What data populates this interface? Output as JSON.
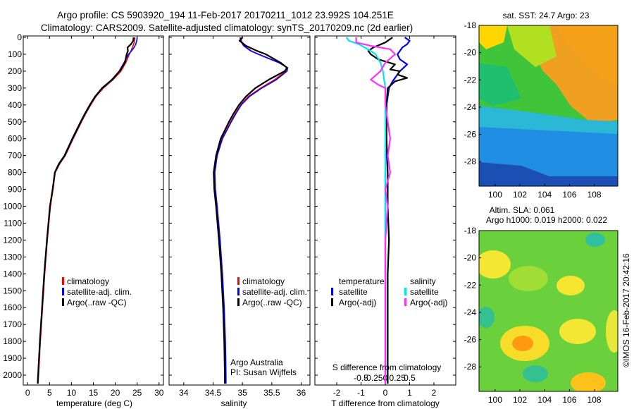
{
  "title": {
    "line1": "Argo profile: CS 5903920_194 11-Feb-2017 20170211_1012 23.992S 104.251E",
    "line2": "Climatology: CARS2009. Satellite-adjusted climatology: synTS_20170209.nc (2d earlier)"
  },
  "colors": {
    "climatology": "#ff0000",
    "satellite": "#0000ff",
    "argo": "#000000",
    "sal_satellite": "#00e5ee",
    "sal_argo": "#ff30ff"
  },
  "chart_data": [
    {
      "type": "line",
      "id": "temperature",
      "xlabel": "temperature (deg C)",
      "ylabel": "",
      "xlim": [
        -1,
        31
      ],
      "ylim": [
        0,
        2050
      ],
      "y_reversed": true,
      "xticks": [
        "0",
        "5",
        "10",
        "15",
        "20",
        "25",
        "30"
      ],
      "yticks": [
        "0",
        "100",
        "200",
        "300",
        "400",
        "500",
        "600",
        "700",
        "800",
        "900",
        "1000",
        "1100",
        "1200",
        "1300",
        "1400",
        "1500",
        "1600",
        "1700",
        "1800",
        "1900",
        "2000"
      ],
      "legend": [
        "climatology",
        "satellite-adj. clim.",
        "Argo(..raw -QC)"
      ],
      "series": [
        {
          "name": "climatology",
          "depth": [
            0,
            20,
            40,
            60,
            80,
            100,
            150,
            200,
            250,
            300,
            350,
            400,
            450,
            500,
            600,
            700,
            750,
            800,
            900,
            1000,
            1200,
            1400,
            1600,
            1800,
            2000,
            2050
          ],
          "values": [
            24.5,
            24.4,
            24.2,
            23.9,
            23.6,
            23.2,
            22.4,
            21.3,
            19.5,
            17.3,
            15.6,
            14.4,
            13.3,
            12.3,
            10.4,
            8.6,
            7.3,
            6.3,
            5.8,
            5.2,
            4.5,
            3.9,
            3.4,
            2.9,
            2.5,
            2.4
          ]
        },
        {
          "name": "satellite-adj. clim.",
          "depth": [
            0,
            20,
            40,
            60,
            80,
            100,
            150,
            200,
            250,
            300,
            350,
            400,
            450,
            500,
            600,
            700,
            750,
            800,
            900,
            1000,
            1200,
            1400,
            1600,
            1800,
            2000,
            2050
          ],
          "values": [
            25.0,
            24.9,
            24.7,
            24.3,
            23.7,
            23.0,
            22.0,
            20.9,
            19.2,
            17.1,
            15.5,
            14.3,
            13.2,
            12.2,
            10.3,
            8.5,
            7.2,
            6.2,
            5.7,
            5.1,
            4.4,
            3.8,
            3.3,
            2.8,
            2.4,
            2.3
          ]
        },
        {
          "name": "Argo(..raw -QC)",
          "depth": [
            0,
            20,
            40,
            60,
            80,
            100,
            150,
            200,
            250,
            300,
            350,
            400,
            450,
            500,
            600,
            700,
            750,
            800,
            900,
            1000,
            1200,
            1400,
            1600,
            1800,
            2000,
            2050
          ],
          "values": [
            24.2,
            24.1,
            23.6,
            22.8,
            22.9,
            22.6,
            22.2,
            21.0,
            19.3,
            17.0,
            15.4,
            14.2,
            13.1,
            12.1,
            10.2,
            8.4,
            7.1,
            6.2,
            5.7,
            5.1,
            4.4,
            3.8,
            3.3,
            2.8,
            2.4,
            2.3
          ]
        }
      ]
    },
    {
      "type": "line",
      "id": "salinity",
      "xlabel": "salinity",
      "xlim": [
        33.75,
        36.15
      ],
      "ylim": [
        0,
        2050
      ],
      "y_reversed": true,
      "xticks": [
        "34",
        "34.5",
        "35",
        "35.5",
        "36"
      ],
      "legend": [
        "climatology",
        "satellite-adj. clim.",
        "Argo(..raw -QC)"
      ],
      "annotation": [
        "Argo Australia",
        "PI: Susan Wijffels"
      ],
      "series": [
        {
          "name": "climatology",
          "depth": [
            0,
            20,
            50,
            80,
            100,
            150,
            180,
            200,
            250,
            300,
            350,
            400,
            450,
            500,
            600,
            700,
            800,
            900,
            1000,
            1200,
            1400,
            1600,
            1800,
            2000,
            2050
          ],
          "values": [
            34.98,
            34.98,
            35.03,
            35.15,
            35.28,
            35.63,
            35.76,
            35.74,
            35.55,
            35.31,
            35.1,
            34.97,
            34.88,
            34.8,
            34.65,
            34.56,
            34.52,
            34.53,
            34.56,
            34.61,
            34.65,
            34.68,
            34.7,
            34.71,
            34.71
          ]
        },
        {
          "name": "satellite-adj. clim.",
          "depth": [
            0,
            20,
            50,
            80,
            100,
            150,
            180,
            200,
            250,
            300,
            350,
            400,
            450,
            500,
            600,
            700,
            800,
            900,
            1000,
            1200,
            1400,
            1600,
            1800,
            2000,
            2050
          ],
          "values": [
            34.96,
            34.97,
            35.02,
            35.14,
            35.27,
            35.62,
            35.77,
            35.76,
            35.58,
            35.33,
            35.12,
            34.98,
            34.89,
            34.81,
            34.66,
            34.57,
            34.53,
            34.54,
            34.57,
            34.62,
            34.66,
            34.69,
            34.71,
            34.72,
            34.72
          ]
        },
        {
          "name": "Argo(..raw -QC)",
          "depth": [
            0,
            20,
            50,
            80,
            100,
            150,
            180,
            200,
            250,
            300,
            350,
            400,
            450,
            500,
            600,
            700,
            800,
            900,
            1000,
            1200,
            1400,
            1600,
            1800,
            2000,
            2050
          ],
          "values": [
            35.0,
            34.95,
            35.06,
            35.25,
            35.4,
            35.65,
            35.76,
            35.72,
            35.45,
            35.22,
            35.06,
            34.94,
            34.85,
            34.77,
            34.63,
            34.55,
            34.51,
            34.52,
            34.55,
            34.6,
            34.64,
            34.67,
            34.69,
            34.7,
            34.7
          ]
        }
      ]
    },
    {
      "type": "line",
      "id": "difference",
      "xlabel": "T difference from climatology",
      "xlabel_top": "S difference from climatology",
      "xlim": [
        -2.9,
        2.9
      ],
      "ylim": [
        0,
        2050
      ],
      "y_reversed": true,
      "xticks": [
        "-2",
        "-1",
        "0",
        "1",
        "2"
      ],
      "sticks": [
        "-0.5",
        "-0.25",
        "0",
        "0.25",
        "0.5"
      ],
      "legend_headers": [
        "temperature",
        "salinity"
      ],
      "legend": [
        "satellite",
        "Argo(-adj)",
        "satellite",
        "Argo(-adj)"
      ],
      "series": [
        {
          "name": "temperature satellite",
          "depth": [
            0,
            20,
            40,
            60,
            80,
            100,
            130,
            160,
            200,
            260,
            300,
            400,
            600,
            800,
            1000,
            1500,
            2050
          ],
          "values": [
            0.8,
            1.0,
            0.9,
            0.7,
            0.6,
            0.5,
            0.6,
            0.9,
            0.6,
            0.3,
            0.15,
            0.05,
            0.02,
            0.0,
            0.0,
            0.0,
            0.0
          ]
        },
        {
          "name": "temperature Argo(-adj)",
          "depth": [
            0,
            30,
            60,
            80,
            100,
            130,
            160,
            190,
            200,
            220,
            240,
            260,
            300,
            400,
            600,
            800,
            1000,
            1200,
            1400,
            1600,
            1800,
            2050
          ],
          "values": [
            0.3,
            0.0,
            -0.5,
            -0.7,
            -0.6,
            -0.3,
            0.4,
            0.2,
            0.6,
            0.5,
            0.9,
            0.4,
            0.1,
            0.05,
            0.05,
            0.1,
            0.1,
            0.15,
            0.1,
            0.1,
            0.1,
            0.1
          ]
        },
        {
          "name": "salinity satellite",
          "depth": [
            0,
            20,
            40,
            80,
            100,
            150,
            200,
            300,
            400,
            600,
            800,
            1000,
            1500,
            2050
          ],
          "values": [
            -0.8,
            -0.75,
            -0.55,
            -0.3,
            -0.2,
            -0.1,
            -0.05,
            0.0,
            0.0,
            0.0,
            0.0,
            0.0,
            0.0,
            0.0
          ]
        },
        {
          "name": "salinity Argo(-adj)",
          "depth": [
            0,
            30,
            50,
            70,
            100,
            150,
            200,
            250,
            280,
            300,
            400,
            500,
            600,
            700,
            800,
            900,
            1000,
            1200,
            1500,
            2050
          ],
          "values": [
            -0.6,
            -0.6,
            -0.3,
            0.1,
            0.2,
            0.0,
            -0.1,
            -0.3,
            -0.15,
            0.0,
            0.0,
            0.05,
            0.1,
            0.05,
            0.1,
            0.0,
            0.05,
            0.0,
            0.0,
            0.0
          ]
        }
      ]
    },
    {
      "type": "heatmap",
      "id": "sst-map",
      "title": "sat. SST: 24.7 Argo: 23",
      "xlim": [
        98.7,
        109.9
      ],
      "ylim": [
        -29.8,
        -18
      ],
      "xticks": [
        "100",
        "102",
        "104",
        "106",
        "108"
      ],
      "yticks": [
        "-18",
        "-20",
        "-22",
        "-24",
        "-26",
        "-28"
      ]
    },
    {
      "type": "heatmap",
      "id": "sla-map",
      "title": [
        "Altim. SLA: 0.061",
        "Argo h1000: 0.019 h2000: 0.022"
      ],
      "xlim": [
        98.7,
        109.9
      ],
      "ylim": [
        -29.8,
        -18
      ],
      "xticks": [
        "100",
        "102",
        "104",
        "106",
        "108"
      ],
      "yticks": [
        "-18",
        "-20",
        "-22",
        "-24",
        "-26",
        "-28"
      ]
    }
  ],
  "credit": "©IMOS 16-Feb-2017 20:42:16"
}
